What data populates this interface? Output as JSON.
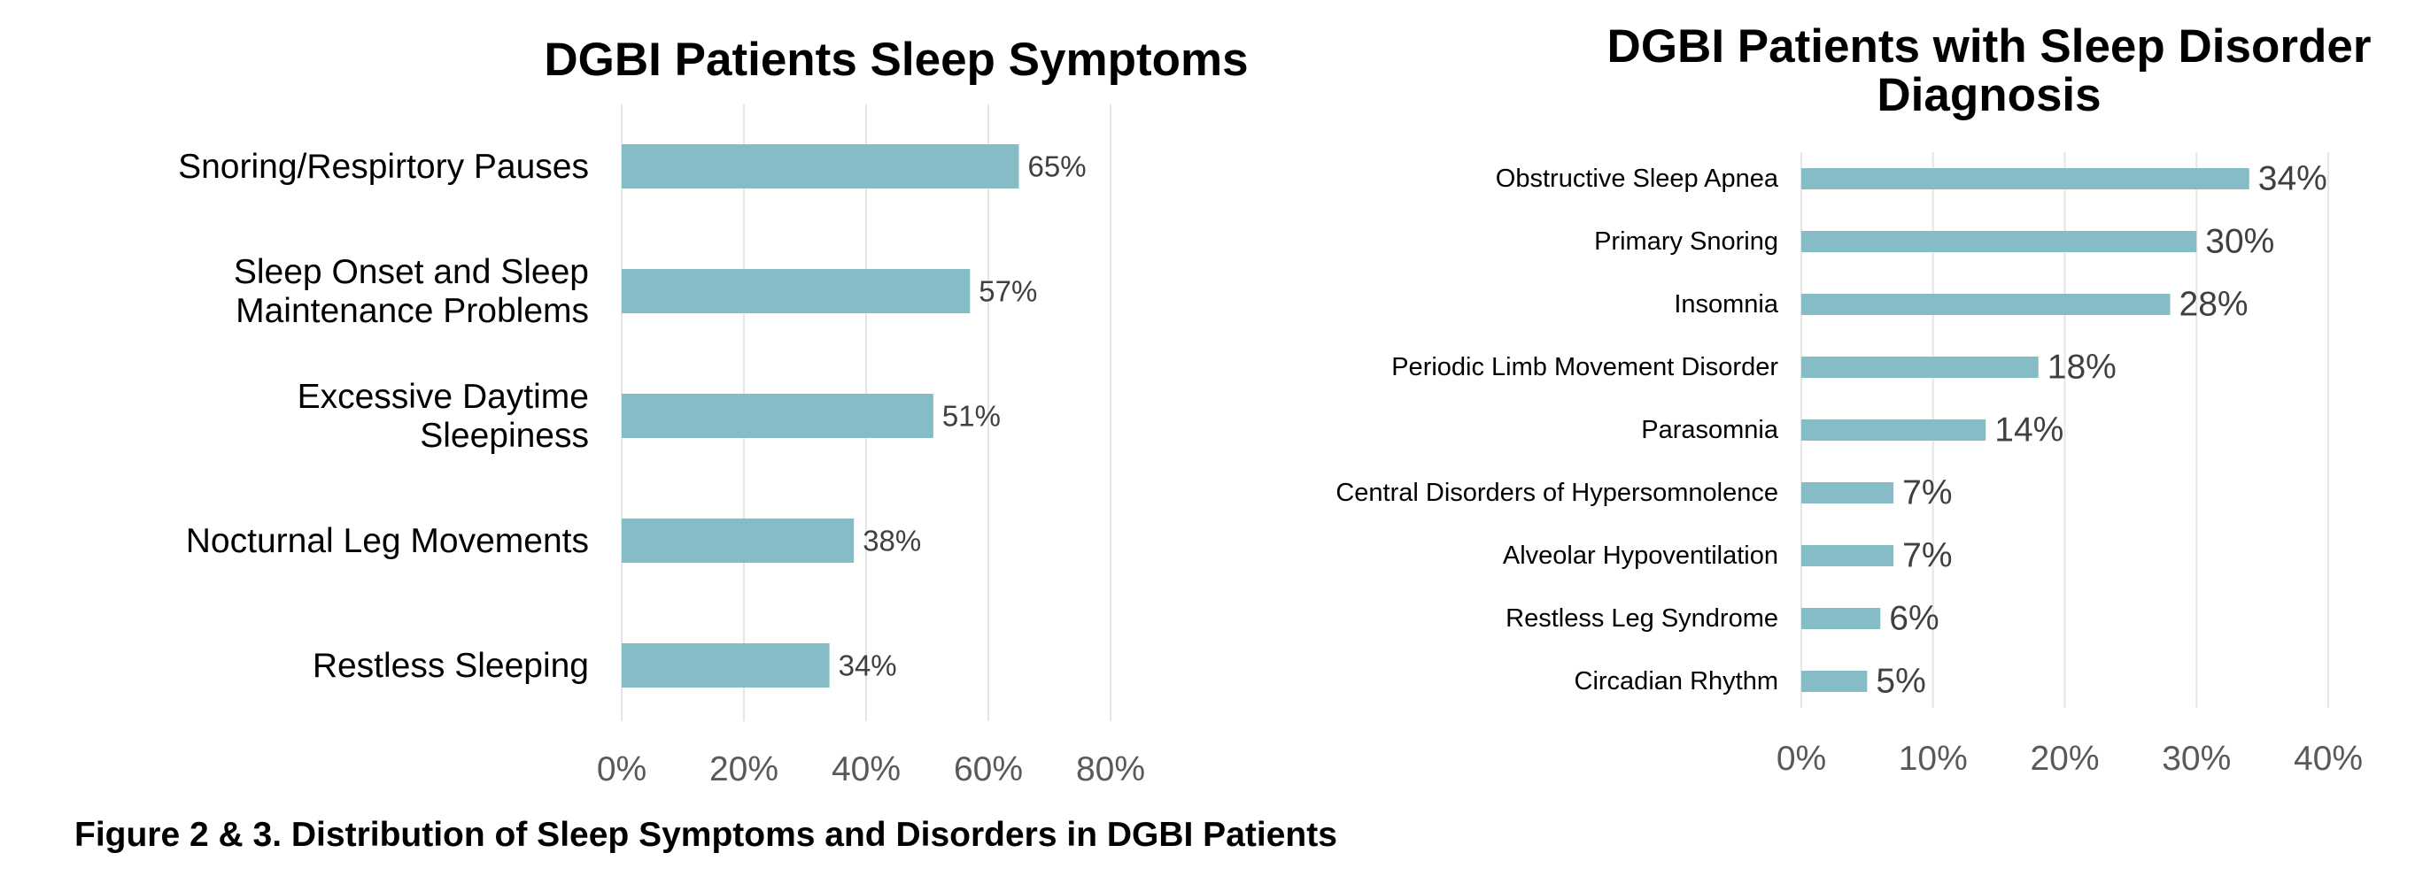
{
  "caption": "Figure 2 & 3. Distribution of Sleep Symptoms and Disorders in DGBI Patients",
  "colors": {
    "bar": "#86bcc5",
    "grid": "#e6e6e6",
    "tick_text": "#595959",
    "data_label": "#404040",
    "label_text": "#000000"
  },
  "chart_data": [
    {
      "type": "bar",
      "orientation": "horizontal",
      "title": [
        "DGBI Patients Sleep Symptoms"
      ],
      "categories": [
        [
          "Snoring/Respirtory Pauses"
        ],
        [
          "Sleep Onset and Sleep",
          "Maintenance Problems"
        ],
        [
          "Excessive Daytime",
          "Sleepiness"
        ],
        [
          "Nocturnal Leg Movements"
        ],
        [
          "Restless Sleeping"
        ]
      ],
      "values": [
        65,
        57,
        51,
        38,
        34
      ],
      "value_labels": [
        "65%",
        "57%",
        "51%",
        "38%",
        "34%"
      ],
      "xlim": [
        0,
        80
      ],
      "x_ticks": [
        0,
        20,
        40,
        60,
        80
      ],
      "x_tick_labels": [
        "0%",
        "20%",
        "40%",
        "60%",
        "80%"
      ],
      "grid": true,
      "legend": "none"
    },
    {
      "type": "bar",
      "orientation": "horizontal",
      "title": [
        "DGBI Patients with Sleep Disorder",
        "Diagnosis"
      ],
      "categories": [
        [
          "Obstructive Sleep Apnea"
        ],
        [
          "Primary Snoring"
        ],
        [
          "Insomnia"
        ],
        [
          "Periodic Limb Movement Disorder"
        ],
        [
          "Parasomnia"
        ],
        [
          "Central Disorders of Hypersomnolence"
        ],
        [
          "Alveolar Hypoventilation"
        ],
        [
          "Restless Leg Syndrome"
        ],
        [
          "Circadian Rhythm"
        ]
      ],
      "values": [
        34,
        30,
        28,
        18,
        14,
        7,
        7,
        6,
        5
      ],
      "value_labels": [
        "34%",
        "30%",
        "28%",
        "18%",
        "14%",
        "7%",
        "7%",
        "6%",
        "5%"
      ],
      "xlim": [
        0,
        40
      ],
      "x_ticks": [
        0,
        10,
        20,
        30,
        40
      ],
      "x_tick_labels": [
        "0%",
        "10%",
        "20%",
        "30%",
        "40%"
      ],
      "grid": true,
      "legend": "none"
    }
  ]
}
